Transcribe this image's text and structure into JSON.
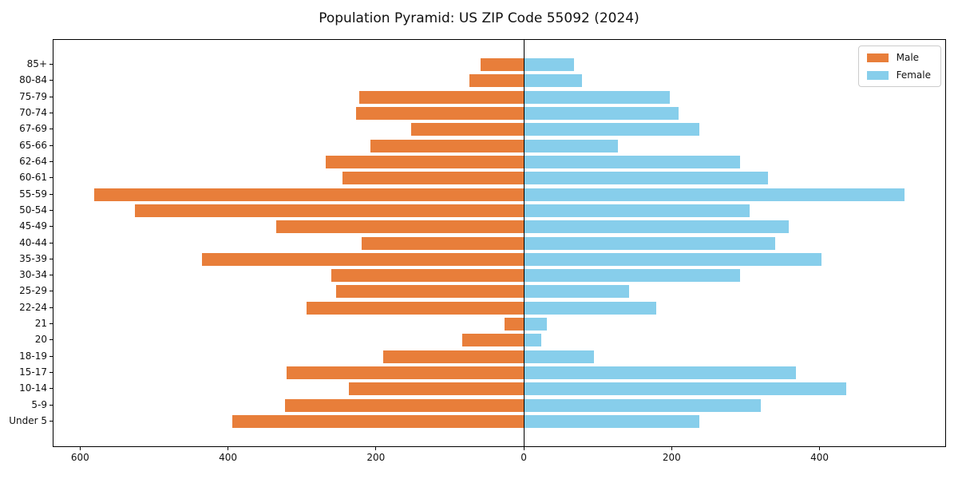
{
  "title": "Population Pyramid: US ZIP Code 55092 (2024)",
  "legend": {
    "male_label": "Male",
    "female_label": "Female"
  },
  "colors": {
    "male": "#e87e3a",
    "female": "#87ceeb",
    "axis": "#000000",
    "legend_border": "#cccccc",
    "background": "#ffffff"
  },
  "chart_data": {
    "type": "bar",
    "subtype": "population-pyramid",
    "title": "Population Pyramid: US ZIP Code 55092 (2024)",
    "xlabel": "",
    "ylabel": "",
    "categories": [
      "85+",
      "80-84",
      "75-79",
      "70-74",
      "67-69",
      "65-66",
      "62-64",
      "60-61",
      "55-59",
      "50-54",
      "45-49",
      "40-44",
      "35-39",
      "30-34",
      "25-29",
      "22-24",
      "21",
      "20",
      "18-19",
      "15-17",
      "10-14",
      "5-9",
      "Under 5"
    ],
    "series": [
      {
        "name": "Male",
        "side": "left",
        "values": [
          58,
          73,
          222,
          227,
          152,
          207,
          268,
          245,
          581,
          526,
          335,
          219,
          435,
          260,
          254,
          294,
          26,
          83,
          190,
          321,
          236,
          323,
          394
        ]
      },
      {
        "name": "Female",
        "side": "right",
        "values": [
          68,
          79,
          197,
          209,
          238,
          127,
          292,
          330,
          515,
          306,
          358,
          340,
          403,
          293,
          142,
          179,
          31,
          24,
          95,
          368,
          436,
          321,
          237
        ]
      }
    ],
    "x_tick_values": [
      -600,
      -400,
      -200,
      0,
      200,
      400
    ],
    "x_tick_labels": [
      "600",
      "400",
      "200",
      "0",
      "200",
      "400"
    ],
    "xlim": [
      -636,
      570
    ],
    "grid": false,
    "legend_position": "upper right",
    "center_line_at_zero": true
  }
}
